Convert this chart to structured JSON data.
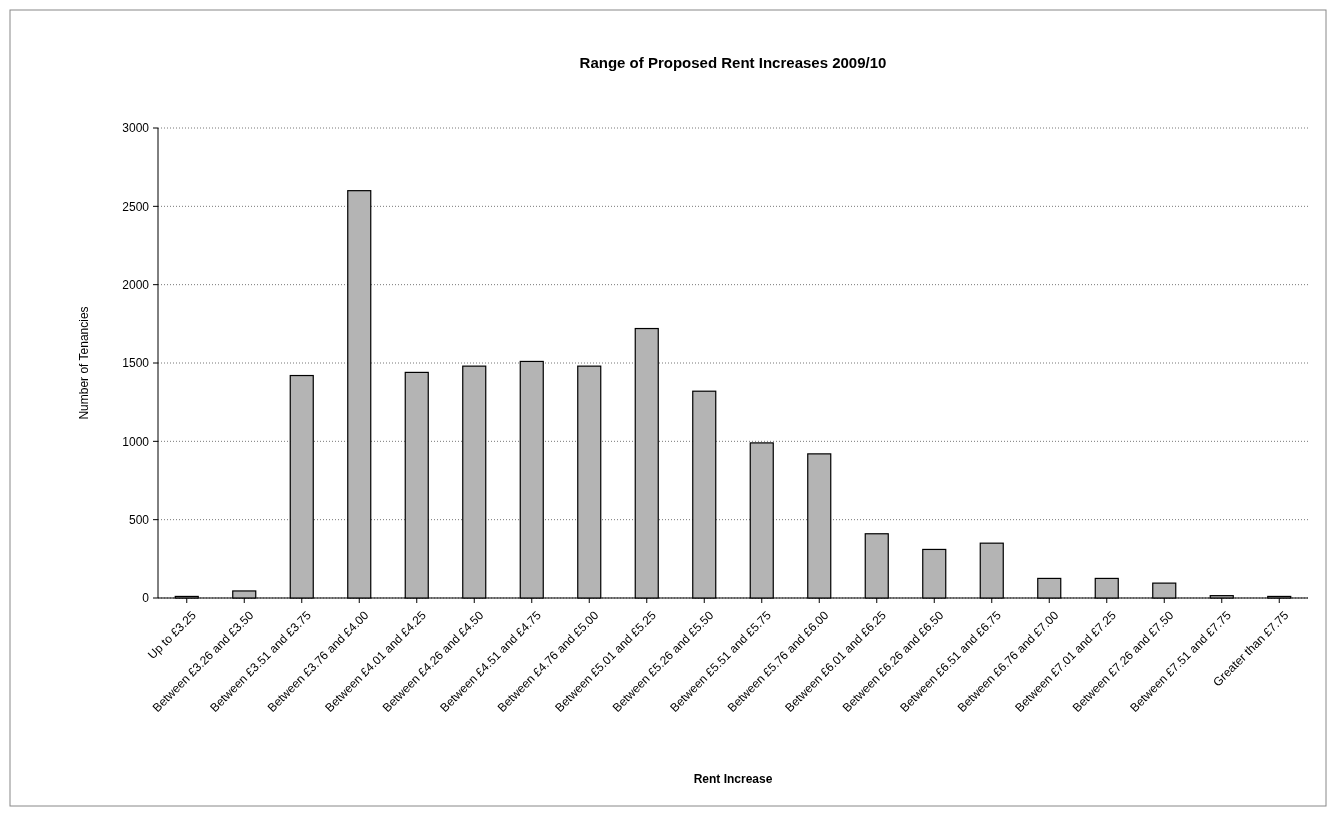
{
  "chart_data": {
    "type": "bar",
    "title": "Range of Proposed Rent Increases 2009/10",
    "xlabel": "Rent Increase",
    "ylabel": "Number of Tenancies",
    "categories": [
      "Up to £3.25",
      "Between £3.26 and £3.50",
      "Between £3.51 and £3.75",
      "Between £3.76 and £4.00",
      "Between £4.01 and £4.25",
      "Between £4.26 and £4.50",
      "Between £4.51 and £4.75",
      "Between £4.76 and £5.00",
      "Between £5.01 and £5.25",
      "Between £5.26 and £5.50",
      "Between £5.51 and £5.75",
      "Between £5.76 and £6.00",
      "Between £6.01 and £6.25",
      "Between £6.26 and £6.50",
      "Between £6.51 and £6.75",
      "Between £6.76 and £7.00",
      "Between £7.01 and £7.25",
      "Between £7.26 and £7.50",
      "Between £7.51 and £7.75",
      "Greater than £7.75"
    ],
    "values": [
      10,
      45,
      1420,
      2600,
      1440,
      1480,
      1510,
      1480,
      1720,
      1320,
      990,
      920,
      410,
      310,
      350,
      125,
      125,
      95,
      15,
      10
    ],
    "color": "#b4b4b4",
    "ylim": [
      0,
      3000
    ],
    "yticks": [
      0,
      500,
      1000,
      1500,
      2000,
      2500,
      3000
    ],
    "grid": "y"
  }
}
